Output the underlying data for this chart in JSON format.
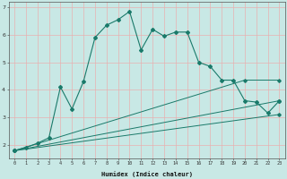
{
  "xlabel": "Humidex (Indice chaleur)",
  "bg_color": "#c8e8e5",
  "grid_color": "#e8b0b0",
  "line_color": "#1a7a6a",
  "xlim": [
    -0.5,
    23.5
  ],
  "ylim": [
    1.5,
    7.2
  ],
  "yticks": [
    2,
    3,
    4,
    5,
    6,
    7
  ],
  "xticks": [
    0,
    1,
    2,
    3,
    4,
    5,
    6,
    7,
    8,
    9,
    10,
    11,
    12,
    13,
    14,
    15,
    16,
    17,
    18,
    19,
    20,
    21,
    22,
    23
  ],
  "main_x": [
    0,
    1,
    2,
    3,
    4,
    5,
    6,
    7,
    8,
    9,
    10,
    11,
    12,
    13,
    14,
    15,
    16,
    17,
    18,
    19,
    20,
    21,
    22,
    23
  ],
  "main_y": [
    1.78,
    1.9,
    2.05,
    2.25,
    4.1,
    3.3,
    4.3,
    5.9,
    6.35,
    6.55,
    6.85,
    5.45,
    6.2,
    5.95,
    6.1,
    6.1,
    5.0,
    4.85,
    4.35,
    4.35,
    3.6,
    3.55,
    3.15,
    3.6
  ],
  "line2_x": [
    0,
    20,
    23
  ],
  "line2_y": [
    1.78,
    4.35,
    4.35
  ],
  "line3_x": [
    0,
    23
  ],
  "line3_y": [
    1.78,
    3.6
  ],
  "line4_x": [
    0,
    23
  ],
  "line4_y": [
    1.78,
    3.1
  ]
}
